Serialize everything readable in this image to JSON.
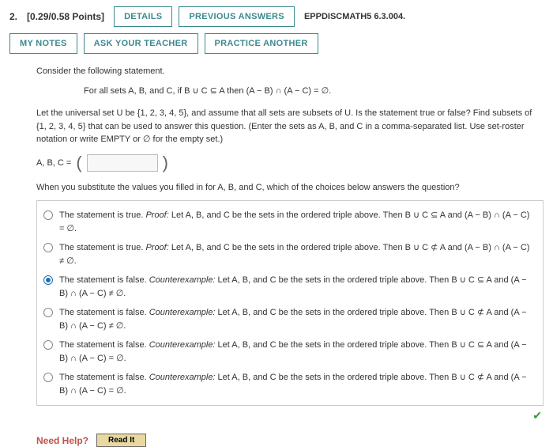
{
  "colors": {
    "accent_teal": "#3b8a8f",
    "accent_red": "#c0504d",
    "link_blue": "#1d6fb8",
    "check_green": "#2e9b3a",
    "readit_bg": "#e9d9a0"
  },
  "header": {
    "index": "2.",
    "points": "[0.29/0.58 Points]",
    "details_btn": "DETAILS",
    "prev_btn": "PREVIOUS ANSWERS",
    "source": "EPPDISCMATH5 6.3.004.",
    "mynotes_btn": "MY NOTES",
    "askteacher_btn": "ASK YOUR TEACHER",
    "practice_btn": "PRACTICE ANOTHER"
  },
  "body": {
    "intro": "Consider the following statement.",
    "statement": "For all sets A, B, and C, if B ∪ C ⊆ A then (A − B) ∩ (A − C) = ∅.",
    "setup": "Let the universal set U be {1, 2, 3, 4, 5}, and assume that all sets are subsets of U. Is the statement true or false? Find subsets of {1, 2, 3, 4, 5} that can be used to answer this question. (Enter the sets as A, B, and C in a comma-separated list. Use set-roster notation or write EMPTY or ∅ for the empty set.)",
    "answer_label": "A, B, C =",
    "answer_value": "",
    "followup": "When you substitute the values you filled in for A, B, and C, which of the choices below answers the question?"
  },
  "options": [
    {
      "selected": false,
      "prefix": "The statement is true. ",
      "emph": "Proof:",
      "rest": " Let A, B, and C be the sets in the ordered triple above. Then B ∪ C ⊆ A and (A − B) ∩ (A − C) = ∅."
    },
    {
      "selected": false,
      "prefix": "The statement is true. ",
      "emph": "Proof:",
      "rest": " Let A, B, and C be the sets in the ordered triple above. Then B ∪ C ⊄ A and (A − B) ∩ (A − C) ≠ ∅."
    },
    {
      "selected": true,
      "prefix": "The statement is false. ",
      "emph": "Counterexample:",
      "rest": " Let A, B, and C be the sets in the ordered triple above. Then B ∪ C ⊆ A and (A − B) ∩ (A − C) ≠ ∅."
    },
    {
      "selected": false,
      "prefix": "The statement is false. ",
      "emph": "Counterexample:",
      "rest": " Let A, B, and C be the sets in the ordered triple above. Then B ∪ C ⊄ A and (A − B) ∩ (A − C) ≠ ∅."
    },
    {
      "selected": false,
      "prefix": "The statement is false. ",
      "emph": "Counterexample:",
      "rest": " Let A, B, and C be the sets in the ordered triple above. Then B ∪ C ⊆ A and (A − B) ∩ (A − C) = ∅."
    },
    {
      "selected": false,
      "prefix": "The statement is false. ",
      "emph": "Counterexample:",
      "rest": " Let A, B, and C be the sets in the ordered triple above. Then B ∪ C ⊄ A and (A − B) ∩ (A − C) = ∅."
    }
  ],
  "feedback": {
    "correct_mark": "✔"
  },
  "help": {
    "label": "Need Help?",
    "readit": "Read It"
  }
}
